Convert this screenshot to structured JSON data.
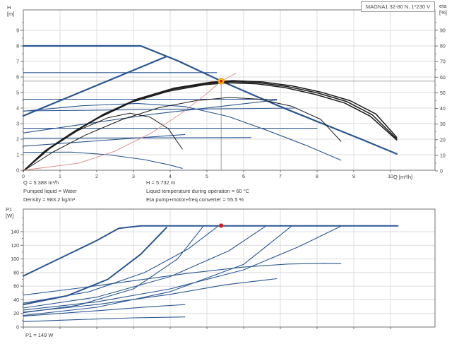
{
  "colors": {
    "blue": "#2a5691",
    "black": "#1b1b1b",
    "red": "#d98b85",
    "grid": "#dcdcdc",
    "frame": "#707070",
    "text": "#3c3c3c",
    "crosshair": "#8a8a8a",
    "op_ring": "#ffc808",
    "op_ring_edge": "#e49400",
    "op_dot": "#dd1414"
  },
  "title_box": "MAGNA1 32-80 N, 1*230 V",
  "axis_labels": {
    "h": "H",
    "h_unit": "[m]",
    "eta": "eta",
    "eta_unit": "[%]",
    "q": "Q [m³/h]",
    "p1": "P1",
    "p1_unit": "[W]"
  },
  "annotations": {
    "flow": "Q = 5.388 m³/h",
    "liquid": "Pumped liquid = Water",
    "density": "Density = 983.2 kg/m³",
    "head": "H = 5.732 m",
    "temperature": "Liquid temperature during operation = 60 °C",
    "efficiency": "Eta pump+motor+freq.converter = 55.5 %",
    "power": "P1 = 149 W"
  },
  "chart_data": [
    {
      "type": "line",
      "id": "head-flow-chart",
      "xlabel": "Q [m³/h]",
      "ylabel": "H [m]",
      "y2label": "eta [%]",
      "xlim": [
        0,
        11.2
      ],
      "ylim": [
        0,
        10.3
      ],
      "y2lim": [
        0,
        103
      ],
      "grid": true,
      "legend": "none",
      "xticks": [
        0,
        1,
        2,
        3,
        4,
        5,
        6,
        7,
        8,
        9,
        10
      ],
      "yticks": [
        0,
        1,
        2,
        3,
        4,
        5,
        6,
        7,
        8,
        9
      ],
      "y2ticks": [
        0,
        10,
        20,
        30,
        40,
        50,
        60,
        70,
        80,
        90
      ],
      "op_point": {
        "q": 5.388,
        "h": 5.732
      },
      "series": [
        {
          "name": "max-speed-curve",
          "color": "blue",
          "width": 2.2,
          "axis": "y1",
          "points": [
            [
              0,
              8
            ],
            [
              3.2,
              8
            ],
            [
              4.2,
              7.05
            ],
            [
              5.39,
              5.74
            ],
            [
              6.3,
              4.8
            ],
            [
              7.2,
              3.9
            ],
            [
              8.2,
              2.95
            ],
            [
              9.2,
              2.0
            ],
            [
              10.17,
              1.05
            ]
          ]
        },
        {
          "name": "prop-pressure-max",
          "color": "blue",
          "width": 2.2,
          "axis": "y1",
          "points": [
            [
              0,
              3.5
            ],
            [
              3.9,
              7.32
            ]
          ]
        },
        {
          "name": "const-pressure-6.25",
          "color": "blue",
          "width": 1.1,
          "axis": "y1",
          "points": [
            [
              0,
              6.28
            ],
            [
              5.27,
              6.28
            ]
          ]
        },
        {
          "name": "const-pressure-4.5",
          "color": "blue",
          "width": 1.1,
          "axis": "y1",
          "points": [
            [
              0,
              4.57
            ],
            [
              6.9,
              4.57
            ]
          ]
        },
        {
          "name": "const-pressure-3.8",
          "color": "blue",
          "width": 1.1,
          "axis": "y1",
          "points": [
            [
              0,
              3.82
            ],
            [
              7.4,
              4.0
            ]
          ]
        },
        {
          "name": "const-pressure-2.7",
          "color": "blue",
          "width": 1.1,
          "axis": "y1",
          "points": [
            [
              0,
              2.7
            ],
            [
              8.0,
              2.7
            ]
          ]
        },
        {
          "name": "const-pressure-2.1",
          "color": "blue",
          "width": 1.1,
          "axis": "y1",
          "points": [
            [
              0,
              2.06
            ],
            [
              6.2,
              2.1
            ]
          ]
        },
        {
          "name": "prop-pressure-2",
          "color": "blue",
          "width": 1.1,
          "axis": "y1",
          "points": [
            [
              0,
              2.4
            ],
            [
              3.5,
              3.6
            ],
            [
              6.9,
              4.52
            ]
          ]
        },
        {
          "name": "prop-pressure-1",
          "color": "blue",
          "width": 1.1,
          "axis": "y1",
          "points": [
            [
              0,
              1.55
            ],
            [
              4.4,
              2.3
            ]
          ]
        },
        {
          "name": "speed-ii-curve",
          "color": "blue",
          "width": 1.1,
          "axis": "y1",
          "points": [
            [
              0,
              3.8
            ],
            [
              1.6,
              4.15
            ],
            [
              3.1,
              4.3
            ],
            [
              4.4,
              4.1
            ],
            [
              5.6,
              3.45
            ],
            [
              6.6,
              2.6
            ],
            [
              7.7,
              1.6
            ],
            [
              8.65,
              0.65
            ]
          ]
        },
        {
          "name": "speed-i-curve",
          "color": "blue",
          "width": 1.1,
          "axis": "y1",
          "points": [
            [
              0,
              1.15
            ],
            [
              1.3,
              1.17
            ],
            [
              2.3,
              1.0
            ],
            [
              3.3,
              0.68
            ],
            [
              4.0,
              0.33
            ],
            [
              4.33,
              0.12
            ]
          ]
        },
        {
          "name": "eta-max-a",
          "color": "black",
          "width": 1.5,
          "axis": "y2",
          "points": [
            [
              0,
              0
            ],
            [
              0.6,
              13
            ],
            [
              1.3,
              24
            ],
            [
              2.1,
              35
            ],
            [
              3,
              45
            ],
            [
              4,
              52
            ],
            [
              5,
              56
            ],
            [
              5.6,
              57.2
            ],
            [
              6.4,
              56.5
            ],
            [
              7.2,
              54
            ],
            [
              8,
              50
            ],
            [
              8.8,
              44.5
            ],
            [
              9.5,
              36
            ],
            [
              10.17,
              20.5
            ]
          ]
        },
        {
          "name": "eta-max-b",
          "color": "black",
          "width": 1.5,
          "axis": "y2",
          "points": [
            [
              0,
              0
            ],
            [
              0.7,
              14
            ],
            [
              1.4,
              25.5
            ],
            [
              2.2,
              36.5
            ],
            [
              3.1,
              46
            ],
            [
              4.1,
              53
            ],
            [
              5.1,
              56.8
            ],
            [
              5.7,
              57.8
            ],
            [
              6.5,
              57
            ],
            [
              7.3,
              54.5
            ],
            [
              8.1,
              50.5
            ],
            [
              8.9,
              45
            ],
            [
              9.6,
              36.5
            ],
            [
              10.17,
              21.5
            ]
          ]
        },
        {
          "name": "eta-max-c",
          "color": "black",
          "width": 1.5,
          "axis": "y2",
          "points": [
            [
              0,
              0
            ],
            [
              0.55,
              12
            ],
            [
              1.25,
              23
            ],
            [
              2.05,
              34
            ],
            [
              2.95,
              44
            ],
            [
              3.95,
              51
            ],
            [
              4.95,
              55.2
            ],
            [
              5.55,
              56.4
            ],
            [
              6.35,
              55.8
            ],
            [
              7.15,
              53.2
            ],
            [
              7.95,
              49
            ],
            [
              8.75,
              43.5
            ],
            [
              9.45,
              35
            ],
            [
              10.17,
              19.8
            ]
          ]
        },
        {
          "name": "eta-speed-ii",
          "color": "black",
          "width": 1.0,
          "axis": "y2",
          "points": [
            [
              0,
              0
            ],
            [
              0.8,
              12
            ],
            [
              1.7,
              23
            ],
            [
              2.7,
              33
            ],
            [
              3.7,
              40.5
            ],
            [
              4.7,
              45
            ],
            [
              5.6,
              47
            ],
            [
              6.4,
              46
            ],
            [
              7.3,
              41.5
            ],
            [
              8.1,
              33
            ],
            [
              8.65,
              19
            ]
          ]
        },
        {
          "name": "eta-speed-i",
          "color": "black",
          "width": 1.0,
          "axis": "y2",
          "points": [
            [
              0,
              0
            ],
            [
              0.7,
              14
            ],
            [
              1.5,
              26
            ],
            [
              2.3,
              34
            ],
            [
              2.9,
              37
            ],
            [
              3.45,
              34.5
            ],
            [
              3.95,
              27
            ],
            [
              4.33,
              14
            ]
          ]
        },
        {
          "name": "system-curve",
          "color": "red",
          "width": 0.9,
          "axis": "y1",
          "points": [
            [
              0,
              0
            ],
            [
              1.5,
              0.45
            ],
            [
              2.5,
              1.23
            ],
            [
              3.5,
              2.42
            ],
            [
              4.3,
              3.65
            ],
            [
              5.0,
              4.94
            ],
            [
              5.39,
              5.73
            ],
            [
              5.8,
              6.25
            ]
          ]
        }
      ]
    },
    {
      "type": "line",
      "id": "power-flow-chart",
      "xlabel": "",
      "ylabel": "P1 [W]",
      "xlim": [
        0,
        11.2
      ],
      "ylim": [
        0,
        173
      ],
      "grid": true,
      "legend": "none",
      "xticks": [
        0,
        1,
        2,
        3,
        4,
        5,
        6,
        7,
        8,
        9,
        10
      ],
      "yticks": [
        0,
        20,
        40,
        60,
        80,
        100,
        120,
        140
      ],
      "op_point": {
        "q": 5.388,
        "p1": 149
      },
      "series": [
        {
          "name": "power-max-speed",
          "color": "blue",
          "width": 2.0,
          "axis": "y1",
          "points": [
            [
              0,
              75
            ],
            [
              1,
              101
            ],
            [
              2,
              127
            ],
            [
              2.6,
              145
            ],
            [
              3.2,
              148.6
            ],
            [
              10.2,
              148.6
            ]
          ]
        },
        {
          "name": "power-prop-max",
          "color": "blue",
          "width": 2.0,
          "axis": "y1",
          "points": [
            [
              0,
              33
            ],
            [
              1.2,
              46
            ],
            [
              2.3,
              70
            ],
            [
              3.2,
              107
            ],
            [
              3.9,
              146
            ]
          ]
        },
        {
          "name": "power-join-4.9",
          "color": "blue",
          "width": 1.1,
          "axis": "y1",
          "points": [
            [
              0,
              21
            ],
            [
              1.5,
              32
            ],
            [
              3,
              56
            ],
            [
              4.2,
              100
            ],
            [
              4.9,
              148
            ]
          ]
        },
        {
          "name": "power-const-6.25",
          "color": "blue",
          "width": 1.1,
          "axis": "y1",
          "points": [
            [
              0,
              35
            ],
            [
              1.8,
              52
            ],
            [
              3.3,
              80
            ],
            [
              4.5,
              115
            ],
            [
              5.3,
              148
            ]
          ]
        },
        {
          "name": "power-const-4.5",
          "color": "blue",
          "width": 1.1,
          "axis": "y1",
          "points": [
            [
              0,
              28
            ],
            [
              2,
              44
            ],
            [
              4,
              74
            ],
            [
              5.6,
              112
            ],
            [
              6.6,
              148
            ]
          ]
        },
        {
          "name": "power-join-7.3",
          "color": "blue",
          "width": 1.1,
          "axis": "y1",
          "points": [
            [
              0,
              17
            ],
            [
              2,
              29
            ],
            [
              4,
              52
            ],
            [
              6,
              92
            ],
            [
              7.3,
              148
            ]
          ]
        },
        {
          "name": "power-const-2.7",
          "color": "blue",
          "width": 1.1,
          "axis": "y1",
          "points": [
            [
              0,
              25
            ],
            [
              2,
              37
            ],
            [
              4,
              56
            ],
            [
              6,
              84
            ],
            [
              7.5,
              118
            ],
            [
              8.65,
              148
            ]
          ]
        },
        {
          "name": "power-speed-ii",
          "color": "blue",
          "width": 1.1,
          "axis": "y1",
          "points": [
            [
              0,
              47
            ],
            [
              1.5,
              57
            ],
            [
              3,
              68
            ],
            [
              4.5,
              79
            ],
            [
              6,
              88
            ],
            [
              7.2,
              92.5
            ],
            [
              8.2,
              93.5
            ],
            [
              8.65,
              93
            ]
          ]
        },
        {
          "name": "power-speed-i",
          "color": "blue",
          "width": 1.1,
          "axis": "y1",
          "points": [
            [
              0,
              8
            ],
            [
              1.5,
              11
            ],
            [
              3,
              13.5
            ],
            [
              4.4,
              14.8
            ]
          ]
        },
        {
          "name": "power-prop-1",
          "color": "blue",
          "width": 1.1,
          "axis": "y1",
          "points": [
            [
              0,
              16
            ],
            [
              2,
              24
            ],
            [
              3.5,
              30
            ],
            [
              4.4,
              33
            ]
          ]
        },
        {
          "name": "power-prop-2",
          "color": "blue",
          "width": 1.1,
          "axis": "y1",
          "points": [
            [
              0,
              22
            ],
            [
              2,
              33
            ],
            [
              4,
              48
            ],
            [
              5.5,
              62
            ],
            [
              6.9,
              71
            ]
          ]
        }
      ]
    }
  ]
}
